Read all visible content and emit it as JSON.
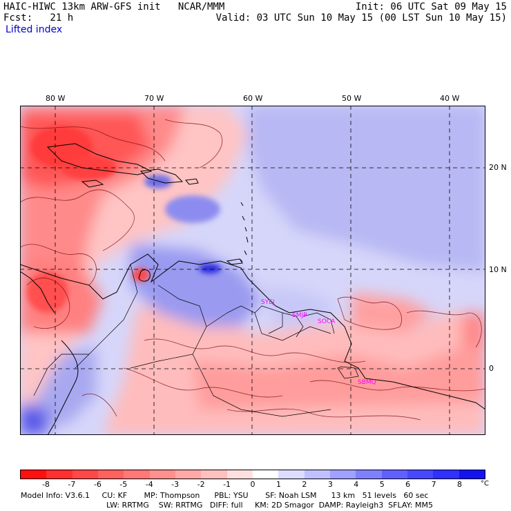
{
  "header": {
    "title": "HAIC-HIWC 13km ARW-GFS init   NCAR/MMM",
    "fcst": "Fcst:   21 h",
    "field": "Lifted index",
    "init": "Init: 06 UTC Sat 09 May 15",
    "valid": "Valid: 03 UTC Sun 10 May 15 (00 LST Sun 10 May 15)"
  },
  "lon_labels": [
    "80 W",
    "70 W",
    "60 W",
    "50 W",
    "40 W"
  ],
  "lat_labels": [
    "20 N",
    "10 N",
    "0"
  ],
  "stations": [
    "SYEJ",
    "SMJP",
    "SOCA",
    "SBMQ"
  ],
  "colorbar": {
    "labels": [
      "-8",
      "-7",
      "-6",
      "-5",
      "-4",
      "-3",
      "-2",
      "-1",
      "0",
      "1",
      "2",
      "3",
      "4",
      "5",
      "6",
      "7",
      "8"
    ],
    "unit": "°C",
    "colors": [
      "#ff1010",
      "#ff3030",
      "#ff4848",
      "#ff6060",
      "#ff7878",
      "#ff9090",
      "#ffa8a8",
      "#ffc0c0",
      "#ffe0e0",
      "#ffffff",
      "#dcdcff",
      "#c0c0ff",
      "#a0a0ff",
      "#8080ff",
      "#6060ff",
      "#4848ff",
      "#3030ff",
      "#1414f0"
    ]
  },
  "model_info": {
    "line1": "Model Info: V3.6.1     CU: KF       MP: Thompson      PBL: YSU       SF: Noah LSM      13 km   51 levels   60 sec",
    "line2": "LW: RRTMG    SW: RRTMG   DIFF: full     KM: 2D Smagor  DAMP: Rayleigh3  SFLAY: MM5"
  },
  "colors": {
    "map_red": "#ff7474",
    "map_pink": "#ffc4c4",
    "map_blue": "#a8a8f4",
    "map_deep_blue": "#3030e0",
    "station_text": "#ff00ff"
  }
}
